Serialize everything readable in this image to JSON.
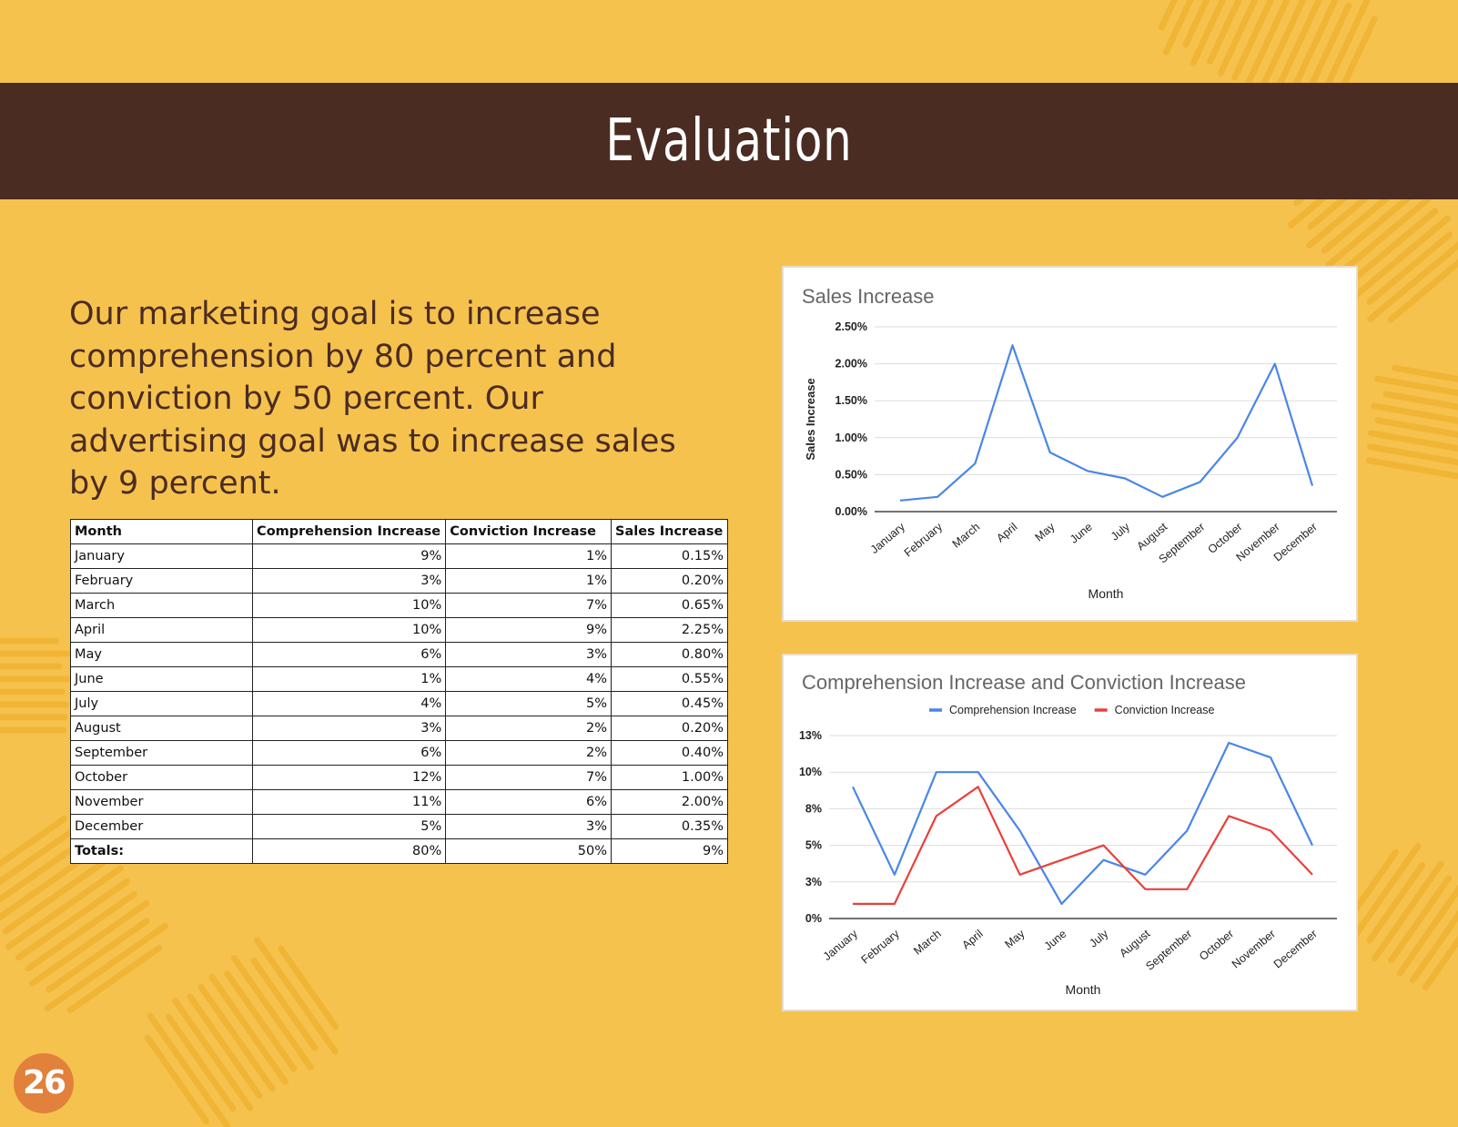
{
  "page": {
    "title": "Evaluation",
    "intro": "Our marketing goal is to increase comprehension by 80 percent and conviction by 50 percent.  Our advertising goal was to increase sales by 9 percent.",
    "page_number": "26",
    "colors": {
      "background": "#f6c24e",
      "title_bar": "#4a2c23",
      "text": "#4a2c23",
      "badge": "#e1813b",
      "comprehension_line": "#4a86e8",
      "conviction_line": "#e8403a"
    }
  },
  "table": {
    "headers": [
      "Month",
      "Comprehension Increase",
      "Conviction Increase",
      "Sales Increase"
    ],
    "rows": [
      [
        "January",
        "9%",
        "1%",
        "0.15%"
      ],
      [
        "February",
        "3%",
        "1%",
        "0.20%"
      ],
      [
        "March",
        "10%",
        "7%",
        "0.65%"
      ],
      [
        "April",
        "10%",
        "9%",
        "2.25%"
      ],
      [
        "May",
        "6%",
        "3%",
        "0.80%"
      ],
      [
        "June",
        "1%",
        "4%",
        "0.55%"
      ],
      [
        "July",
        "4%",
        "5%",
        "0.45%"
      ],
      [
        "August",
        "3%",
        "2%",
        "0.20%"
      ],
      [
        "September",
        "6%",
        "2%",
        "0.40%"
      ],
      [
        "October",
        "12%",
        "7%",
        "1.00%"
      ],
      [
        "November",
        "11%",
        "6%",
        "2.00%"
      ],
      [
        "December",
        "5%",
        "3%",
        "0.35%"
      ]
    ],
    "totals": [
      "Totals:",
      "80%",
      "50%",
      "9%"
    ]
  },
  "chart_data": [
    {
      "id": "sales",
      "type": "line",
      "title": "Sales Increase",
      "xlabel": "Month",
      "ylabel": "Sales Increase",
      "categories": [
        "January",
        "February",
        "March",
        "April",
        "May",
        "June",
        "July",
        "August",
        "September",
        "October",
        "November",
        "December"
      ],
      "series": [
        {
          "values": [
            0.15,
            0.2,
            0.65,
            2.25,
            0.8,
            0.55,
            0.45,
            0.2,
            0.4,
            1.0,
            2.0,
            0.35
          ],
          "color": "#4a86e8"
        }
      ],
      "ylim": [
        0,
        2.5
      ],
      "yticks": [
        "0.00%",
        "0.50%",
        "1.00%",
        "1.50%",
        "2.00%",
        "2.50%"
      ],
      "grid": true,
      "legend": "none"
    },
    {
      "id": "ci",
      "type": "line",
      "title": "Comprehension Increase and Conviction Increase",
      "xlabel": "Month",
      "ylabel": "",
      "categories": [
        "January",
        "February",
        "March",
        "April",
        "May",
        "June",
        "July",
        "August",
        "September",
        "October",
        "November",
        "December"
      ],
      "series": [
        {
          "name": "Comprehension Increase",
          "values": [
            9,
            3,
            10,
            10,
            6,
            1,
            4,
            3,
            6,
            12,
            11,
            5
          ],
          "color": "#4a86e8"
        },
        {
          "name": "Conviction Increase",
          "values": [
            1,
            1,
            7,
            9,
            3,
            4,
            5,
            2,
            2,
            7,
            6,
            3
          ],
          "color": "#e8403a"
        }
      ],
      "ylim": [
        0,
        12.5
      ],
      "yticks": [
        "0%",
        "3%",
        "5%",
        "8%",
        "10%",
        "13%"
      ],
      "grid": true,
      "legend": "top"
    }
  ]
}
